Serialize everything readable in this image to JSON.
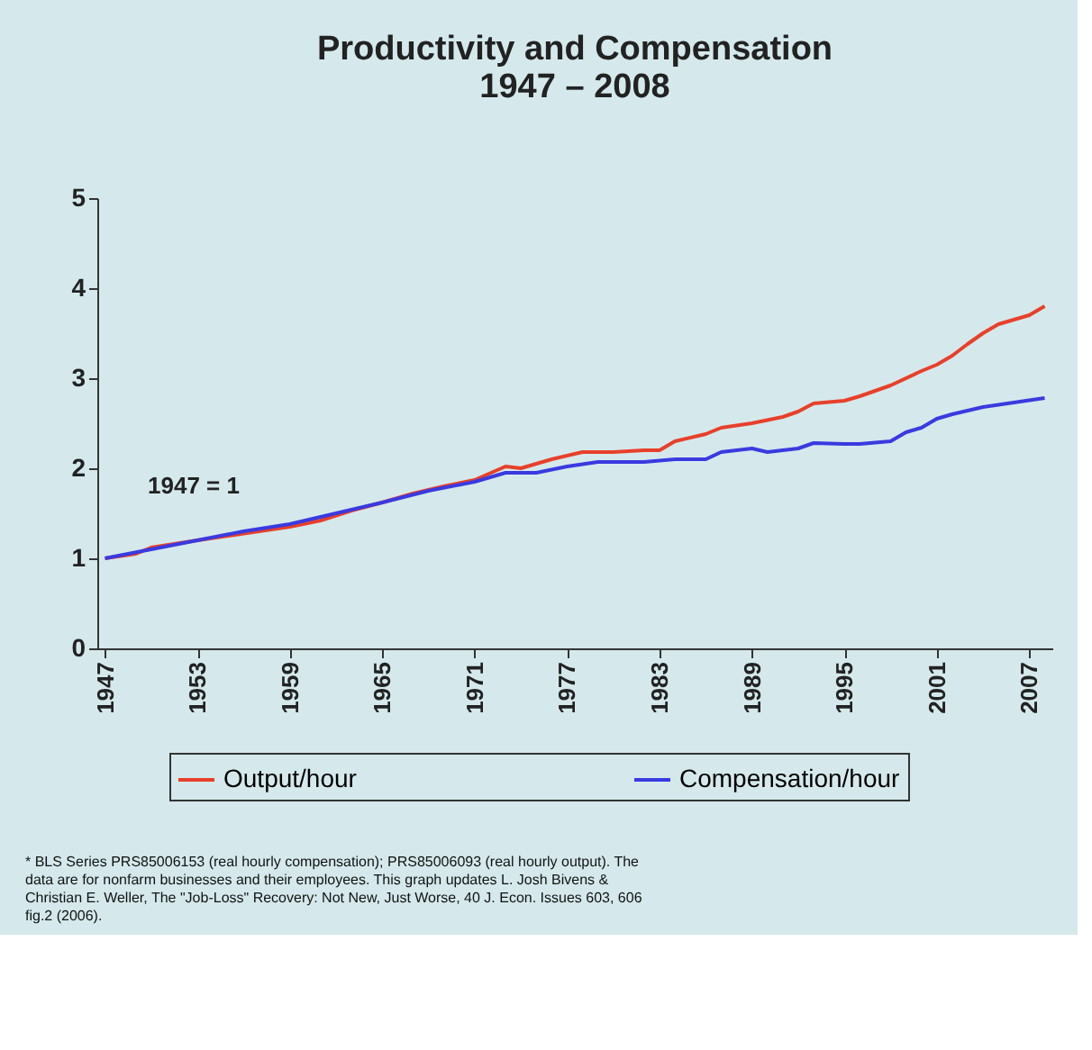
{
  "chart_data": {
    "type": "line",
    "title": [
      "Productivity and Compensation",
      "1947 – 2008"
    ],
    "xlim": [
      1946.5,
      2008.5
    ],
    "xticks": [
      1947,
      1953,
      1959,
      1965,
      1971,
      1977,
      1983,
      1989,
      1995,
      2001,
      2007
    ],
    "ylim": [
      0,
      5
    ],
    "yticks": [
      0,
      1,
      2,
      3,
      4,
      5
    ],
    "grid": false,
    "legend": "bottom",
    "line_style": "solid",
    "marker": "none",
    "annotations": [
      "1947 = 1",
      "* BLS Series PRS85006153 (real hourly compensation); PRS85006093 (real hourly output). The\ndata are for nonfarm businesses and their employees. This graph updates L. Josh Bivens &\nChristian E. Weller, The \"Job-Loss\" Recovery: Not New, Just Worse, 40 J. Econ. Issues 603, 606\nfig.2 (2006)."
    ],
    "series": [
      {
        "name": "Output/hour",
        "color": "#e8402a",
        "x": [
          1947,
          1949,
          1950,
          1953,
          1955,
          1957,
          1959,
          1961,
          1963,
          1965,
          1967,
          1969,
          1971,
          1973,
          1974,
          1976,
          1978,
          1980,
          1982,
          1983,
          1984,
          1986,
          1987,
          1989,
          1991,
          1992,
          1993,
          1995,
          1996,
          1998,
          2000,
          2001,
          2002,
          2003,
          2004,
          2005,
          2006,
          2007,
          2008
        ],
        "values": [
          1.0,
          1.05,
          1.12,
          1.2,
          1.25,
          1.3,
          1.35,
          1.42,
          1.53,
          1.62,
          1.72,
          1.8,
          1.87,
          2.02,
          2.0,
          2.1,
          2.18,
          2.18,
          2.2,
          2.2,
          2.3,
          2.38,
          2.45,
          2.5,
          2.57,
          2.63,
          2.72,
          2.75,
          2.8,
          2.92,
          3.08,
          3.15,
          3.25,
          3.38,
          3.5,
          3.6,
          3.65,
          3.7,
          3.8
        ]
      },
      {
        "name": "Compensation/hour",
        "color": "#3a3ae0",
        "x": [
          1947,
          1950,
          1953,
          1956,
          1959,
          1962,
          1965,
          1968,
          1971,
          1973,
          1975,
          1977,
          1979,
          1982,
          1984,
          1986,
          1987,
          1989,
          1990,
          1992,
          1993,
          1995,
          1996,
          1998,
          1999,
          2000,
          2001,
          2002,
          2004,
          2006,
          2008
        ],
        "values": [
          1.0,
          1.1,
          1.2,
          1.3,
          1.38,
          1.5,
          1.62,
          1.75,
          1.85,
          1.95,
          1.95,
          2.02,
          2.07,
          2.07,
          2.1,
          2.1,
          2.18,
          2.22,
          2.18,
          2.22,
          2.28,
          2.27,
          2.27,
          2.3,
          2.4,
          2.45,
          2.55,
          2.6,
          2.68,
          2.73,
          2.78
        ]
      }
    ]
  }
}
